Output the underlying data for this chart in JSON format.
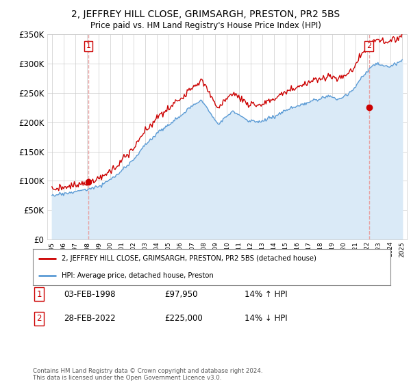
{
  "title": "2, JEFFREY HILL CLOSE, GRIMSARGH, PRESTON, PR2 5BS",
  "subtitle": "Price paid vs. HM Land Registry's House Price Index (HPI)",
  "legend_line1": "2, JEFFREY HILL CLOSE, GRIMSARGH, PRESTON, PR2 5BS (detached house)",
  "legend_line2": "HPI: Average price, detached house, Preston",
  "point1_date": "03-FEB-1998",
  "point1_price": "£97,950",
  "point1_hpi": "14% ↑ HPI",
  "point1_year": 1998.12,
  "point1_value": 97950,
  "point2_date": "28-FEB-2022",
  "point2_price": "£225,000",
  "point2_hpi": "14% ↓ HPI",
  "point2_year": 2022.16,
  "point2_value": 225000,
  "hpi_line_color": "#5b9bd5",
  "hpi_fill_color": "#daeaf7",
  "price_color": "#cc0000",
  "dot_color": "#cc0000",
  "vline_color": "#e8a0a0",
  "ylim": [
    0,
    350000
  ],
  "yticks": [
    0,
    50000,
    100000,
    150000,
    200000,
    250000,
    300000,
    350000
  ],
  "footer": "Contains HM Land Registry data © Crown copyright and database right 2024.\nThis data is licensed under the Open Government Licence v3.0.",
  "background_color": "#ffffff",
  "grid_color": "#cccccc"
}
